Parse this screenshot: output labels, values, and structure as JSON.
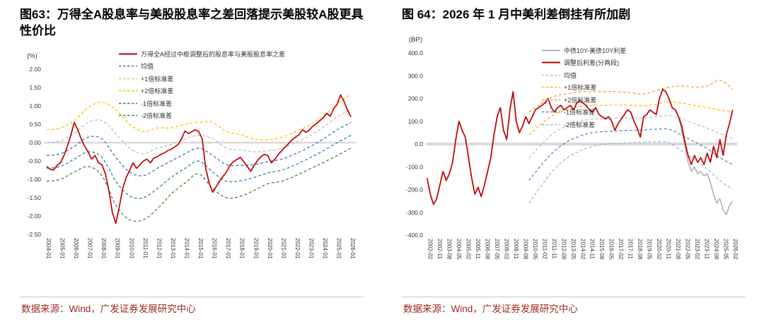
{
  "colors": {
    "accent_red": "#C00000",
    "source_text": "#9E2A1E",
    "zero_line": "#D9D9D9"
  },
  "chart_data": [
    {
      "type": "line",
      "title": "图63：万得全A股息率与美股股息率之差回落提示美股较A股更具性价比",
      "unit_label": "(%)",
      "source_label": "数据来源：Wind，广发证券发展研究中心",
      "x_range": [
        2003.8,
        2026.4
      ],
      "y_range": [
        -2.5,
        2.0
      ],
      "legend_position": "top-left-overlay",
      "grid": false,
      "y_ticks": [
        {
          "v": 2.0,
          "label": "2.00"
        },
        {
          "v": 1.5,
          "label": "1.50"
        },
        {
          "v": 1.0,
          "label": "1.00"
        },
        {
          "v": 0.5,
          "label": "0.50"
        },
        {
          "v": 0.0,
          "label": "0.00"
        },
        {
          "v": -0.5,
          "label": "-0.50"
        },
        {
          "v": -1.0,
          "label": "-1.00"
        },
        {
          "v": -1.5,
          "label": "-1.50"
        },
        {
          "v": -2.0,
          "label": "-2.00"
        },
        {
          "v": -2.5,
          "label": "-2.50"
        }
      ],
      "x_tick_labels": [
        "2004-01",
        "2005-01",
        "2006-01",
        "2007-01",
        "2008-01",
        "2009-01",
        "2010-01",
        "2011-01",
        "2012-01",
        "2013-01",
        "2014-01",
        "2015-01",
        "2016-01",
        "2017-01",
        "2018-01",
        "2019-01",
        "2020-01",
        "2021-01",
        "2022-01",
        "2023-01",
        "2024-01",
        "2025-01",
        "2026-01"
      ],
      "series": [
        {
          "name": "万得全A经过中枢调整后的股息率与美股股息率之差",
          "color": "#C00000",
          "width": 1.7,
          "dash": "",
          "z": 2,
          "smooth": false,
          "x_start": 2004,
          "x_step": 0.25,
          "values": [
            -0.65,
            -0.72,
            -0.75,
            -0.62,
            -0.55,
            -0.35,
            -0.1,
            0.2,
            0.55,
            0.35,
            0.1,
            -0.1,
            -0.25,
            -0.45,
            -0.35,
            -0.55,
            -0.6,
            -0.85,
            -1.3,
            -1.9,
            -2.2,
            -1.75,
            -1.25,
            -0.95,
            -0.75,
            -0.55,
            -0.7,
            -0.6,
            -0.5,
            -0.45,
            -0.55,
            -0.42,
            -0.38,
            -0.32,
            -0.28,
            -0.22,
            -0.18,
            -0.12,
            -0.05,
            0.1,
            0.32,
            0.25,
            0.3,
            0.35,
            0.3,
            0.1,
            -0.7,
            -1.1,
            -1.35,
            -1.2,
            -1.05,
            -0.92,
            -0.8,
            -0.62,
            -0.52,
            -0.46,
            -0.4,
            -0.52,
            -0.65,
            -0.78,
            -0.62,
            -0.48,
            -0.38,
            -0.32,
            -0.36,
            -0.55,
            -0.45,
            -0.32,
            -0.22,
            -0.12,
            -0.02,
            0.08,
            0.15,
            0.22,
            0.35,
            0.28,
            0.35,
            0.45,
            0.52,
            0.6,
            0.68,
            0.8,
            0.72,
            0.92,
            1.05,
            1.3,
            1.12,
            0.88,
            0.7
          ]
        },
        {
          "name": "均值",
          "color": "#4472C4",
          "width": 1.3,
          "dash": "4 3",
          "z": 0,
          "smooth": true,
          "x_start": 2004,
          "x_step": 1,
          "values": [
            -0.35,
            -0.3,
            -0.1,
            0.15,
            0.1,
            -0.4,
            -0.8,
            -0.9,
            -0.7,
            -0.5,
            -0.3,
            -0.15,
            -0.35,
            -0.6,
            -0.62,
            -0.6,
            -0.52,
            -0.45,
            -0.3,
            -0.12,
            0.1,
            0.35,
            0.55
          ]
        },
        {
          "name": "+1倍标准差",
          "color": "#BFBFBF",
          "width": 1.3,
          "dash": "4 3",
          "z": 0,
          "smooth": true,
          "x_start": 2004,
          "x_step": 1,
          "values": [
            0.0,
            0.05,
            0.25,
            0.55,
            0.6,
            0.25,
            -0.15,
            -0.3,
            -0.15,
            -0.05,
            0.1,
            0.2,
            0.1,
            -0.15,
            -0.2,
            -0.25,
            -0.22,
            -0.15,
            0.0,
            0.18,
            0.42,
            0.7,
            0.9
          ]
        },
        {
          "name": "+2倍标准差",
          "color": "#FFC000",
          "width": 1.3,
          "dash": "4 3",
          "z": 0,
          "smooth": true,
          "x_start": 2004,
          "x_step": 1,
          "values": [
            0.35,
            0.4,
            0.6,
            0.95,
            1.1,
            0.9,
            0.5,
            0.3,
            0.4,
            0.4,
            0.5,
            0.55,
            0.55,
            0.3,
            0.22,
            0.1,
            0.08,
            0.15,
            0.3,
            0.48,
            0.74,
            1.05,
            1.32
          ]
        },
        {
          "name": "-1倍标准差",
          "color": "#31859C",
          "width": 1.3,
          "dash": "4 3",
          "z": 0,
          "smooth": true,
          "x_start": 2004,
          "x_step": 1,
          "values": [
            -0.7,
            -0.65,
            -0.45,
            -0.25,
            -0.4,
            -1.05,
            -1.45,
            -1.5,
            -1.25,
            -0.95,
            -0.7,
            -0.5,
            -0.8,
            -1.05,
            -1.04,
            -0.95,
            -0.82,
            -0.75,
            -0.6,
            -0.42,
            -0.22,
            0.0,
            0.2
          ]
        },
        {
          "name": "-2倍标准差",
          "color": "#548235",
          "width": 1.3,
          "dash": "4 3",
          "z": 0,
          "smooth": true,
          "x_start": 2004,
          "x_step": 1,
          "values": [
            -1.05,
            -1.0,
            -0.8,
            -0.65,
            -0.9,
            -1.7,
            -2.1,
            -2.1,
            -1.8,
            -1.4,
            -1.1,
            -0.85,
            -1.25,
            -1.5,
            -1.46,
            -1.3,
            -1.12,
            -1.05,
            -0.9,
            -0.72,
            -0.54,
            -0.35,
            -0.15
          ]
        }
      ]
    },
    {
      "type": "line",
      "title": "图 64：2026 年 1 月中美利差倒挂有所加剧",
      "unit_label": "(BP)",
      "source_label": "数据来源：Wind，广发证券发展研究中心",
      "x_range": [
        2001.9,
        2026.35
      ],
      "y_range": [
        -400,
        400
      ],
      "legend_position": "top-center-overlay",
      "grid": false,
      "y_ticks": [
        {
          "v": 400,
          "label": "400.0"
        },
        {
          "v": 300,
          "label": "300.0"
        },
        {
          "v": 200,
          "label": "200.0"
        },
        {
          "v": 100,
          "label": "100.0"
        },
        {
          "v": 0,
          "label": "0.0"
        },
        {
          "v": -100,
          "label": "-100.0"
        },
        {
          "v": -200,
          "label": "-200.0"
        },
        {
          "v": -300,
          "label": "-300.0"
        },
        {
          "v": -400,
          "label": "-400.0"
        }
      ],
      "x_tick_labels": [
        "2002-02",
        "2002-11",
        "2003-08",
        "2004-05",
        "2005-02",
        "2005-11",
        "2006-08",
        "2007-05",
        "2008-02",
        "2008-11",
        "2009-08",
        "2010-05",
        "2011-02",
        "2011-11",
        "2012-08",
        "2013-05",
        "2014-02",
        "2014-11",
        "2015-08",
        "2016-05",
        "2017-02",
        "2017-11",
        "2018-08",
        "2019-05",
        "2020-02",
        "2020-11",
        "2021-08",
        "2022-05",
        "2023-02",
        "2023-11",
        "2024-08",
        "2025-05",
        "2026-02"
      ],
      "series": [
        {
          "name": "中债10Y-美债10Y利差",
          "color": "#A6A6A6",
          "width": 1.4,
          "dash": "",
          "z": 1,
          "smooth": false,
          "x_start": 2002,
          "x_step": 0.25,
          "values": [
            -150,
            -220,
            -265,
            -240,
            -180,
            -120,
            -160,
            -130,
            -80,
            20,
            100,
            60,
            30,
            -60,
            -150,
            -220,
            -190,
            -230,
            -180,
            -120,
            -60,
            40,
            120,
            160,
            60,
            20,
            150,
            230,
            100,
            50,
            80,
            120,
            90,
            120,
            150,
            160,
            170,
            180,
            200,
            160,
            140,
            160,
            170,
            150,
            160,
            170,
            150,
            180,
            190,
            180,
            170,
            150,
            140,
            160,
            130,
            120,
            110,
            120,
            100,
            60,
            90,
            110,
            130,
            150,
            140,
            100,
            70,
            30,
            120,
            130,
            150,
            140,
            130,
            200,
            240,
            230,
            200,
            160,
            150,
            120,
            60,
            -10,
            -80,
            -120,
            -100,
            -130,
            -120,
            -140,
            -130,
            -170,
            -220,
            -260,
            -240,
            -290,
            -310,
            -270,
            -250
          ]
        },
        {
          "name": "调整后利差(分两段)",
          "color": "#C00000",
          "width": 1.7,
          "dash": "",
          "z": 2,
          "smooth": false,
          "x_start": 2002,
          "x_step": 0.25,
          "values": [
            -150,
            -220,
            -265,
            -240,
            -180,
            -120,
            -160,
            -130,
            -80,
            20,
            100,
            60,
            30,
            -60,
            -150,
            -220,
            -190,
            -230,
            -180,
            -120,
            -60,
            40,
            120,
            160,
            60,
            20,
            150,
            230,
            100,
            50,
            80,
            120,
            90,
            120,
            150,
            160,
            170,
            180,
            200,
            160,
            140,
            160,
            170,
            150,
            160,
            170,
            150,
            180,
            190,
            180,
            170,
            150,
            140,
            160,
            130,
            120,
            110,
            120,
            100,
            60,
            90,
            110,
            130,
            150,
            140,
            100,
            70,
            30,
            120,
            130,
            150,
            140,
            130,
            200,
            240,
            230,
            200,
            160,
            150,
            120,
            80,
            10,
            -50,
            -90,
            -50,
            -80,
            -60,
            -90,
            -40,
            -80,
            -10,
            -60,
            20,
            -50,
            40,
            90,
            150
          ]
        },
        {
          "name": "均值",
          "color": "#BFBFBF",
          "width": 1.3,
          "dash": "4 3",
          "z": 0,
          "smooth": true,
          "x_start": 2010,
          "x_step": 1,
          "values": [
            -60,
            0,
            50,
            80,
            100,
            110,
            110,
            115,
            115,
            115,
            120,
            125,
            110,
            90,
            70,
            45,
            25
          ]
        },
        {
          "name": "+1倍标准差",
          "color": "#FFC000",
          "width": 1.3,
          "dash": "4 3",
          "z": 0,
          "smooth": true,
          "x_start": 2010,
          "x_step": 1,
          "values": [
            40,
            90,
            130,
            150,
            165,
            170,
            170,
            172,
            170,
            168,
            175,
            185,
            180,
            170,
            160,
            150,
            140
          ]
        },
        {
          "name": "+2倍标准差",
          "color": "#E8A33D",
          "width": 1.3,
          "dash": "4 3",
          "z": 0,
          "smooth": true,
          "x_start": 2010,
          "x_step": 1,
          "values": [
            140,
            180,
            210,
            220,
            230,
            230,
            230,
            230,
            225,
            220,
            235,
            250,
            255,
            250,
            255,
            280,
            240
          ]
        },
        {
          "name": "-1倍标准差",
          "color": "#5B84C4",
          "width": 1.3,
          "dash": "4 3",
          "z": 0,
          "smooth": true,
          "x_start": 2010,
          "x_step": 1,
          "values": [
            -160,
            -90,
            -30,
            10,
            35,
            50,
            55,
            58,
            60,
            62,
            65,
            65,
            40,
            10,
            -20,
            -60,
            -90
          ]
        },
        {
          "name": "-2倍标准差",
          "color": "#9DB3E3",
          "width": 1.3,
          "dash": "4 3",
          "z": 0,
          "smooth": true,
          "x_start": 2010,
          "x_step": 1,
          "values": [
            -260,
            -180,
            -110,
            -60,
            -30,
            -10,
            0,
            2,
            5,
            8,
            10,
            5,
            -30,
            -70,
            -110,
            -160,
            -200
          ]
        }
      ]
    }
  ]
}
